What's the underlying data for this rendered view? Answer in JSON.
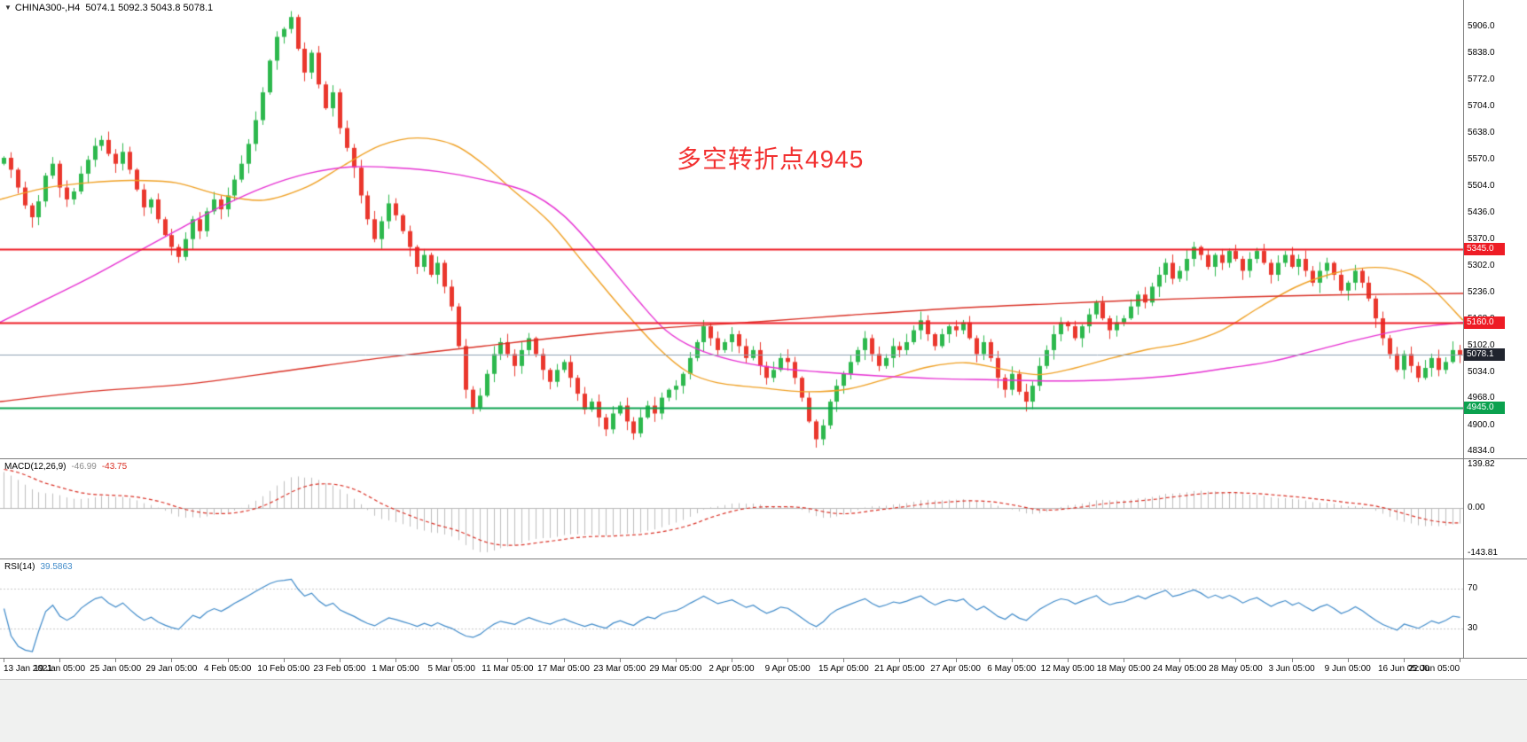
{
  "colors": {
    "bull": "#2db84d",
    "bear": "#ea372d",
    "ma_fast": "#efa024",
    "ma_mid": "#e632d2",
    "ma_slow": "#d93025",
    "hline_red": "#ee1c25",
    "hline_green": "#0aa14e",
    "price_line": "#8fa0b3",
    "hist": "#bdbdbd",
    "signal": "#d93025",
    "rsi": "#3f8ac9",
    "annotation": "#f23030",
    "badge_dark": "#20242e",
    "macd_value": "#8a8a8a",
    "rsi_value": "#3f8ac9"
  },
  "symbol_info": {
    "marker": "▼",
    "symbol": "CHINA300-,H4",
    "ohlc": "5074.1 5092.3 5043.8 5078.1"
  },
  "annotation": {
    "text": "多空转折点4945"
  },
  "price_scale": {
    "ticks": [
      5906,
      5838,
      5772,
      5704,
      5638,
      5570,
      5504,
      5436,
      5370,
      5302,
      5236,
      5168,
      5102,
      5034,
      4968,
      4900,
      4834
    ],
    "badges": [
      {
        "label": "5345.0",
        "price": 5345,
        "bg": "#ee1c25",
        "name": "hline-badge-5345"
      },
      {
        "label": "5160.0",
        "price": 5160,
        "bg": "#ee1c25",
        "name": "hline-badge-5160"
      },
      {
        "label": "5078.1",
        "price": 5078.1,
        "bg": "#20242e",
        "name": "current-price-badge"
      },
      {
        "label": "4945.0",
        "price": 4945,
        "bg": "#0aa14e",
        "name": "hline-badge-4945"
      }
    ]
  },
  "macd_header": {
    "label": "MACD(12,26,9)",
    "main": "-46.99",
    "signal": "-43.75"
  },
  "macd_scale": [
    "139.82",
    "0.00",
    "-143.81"
  ],
  "rsi_header": {
    "label": "RSI(14)",
    "value": "39.5863"
  },
  "rsi_scale": [
    "70",
    "30"
  ],
  "chart_data": {
    "type": "candlestick",
    "title": "CHINA300- H4",
    "price_range": [
      4817,
      5973
    ],
    "closes": [
      5575,
      5545,
      5500,
      5455,
      5425,
      5465,
      5530,
      5560,
      5500,
      5470,
      5490,
      5535,
      5570,
      5605,
      5620,
      5585,
      5560,
      5590,
      5545,
      5495,
      5450,
      5470,
      5420,
      5380,
      5350,
      5325,
      5370,
      5420,
      5390,
      5440,
      5470,
      5445,
      5480,
      5520,
      5560,
      5610,
      5670,
      5740,
      5820,
      5880,
      5900,
      5930,
      5850,
      5790,
      5840,
      5760,
      5700,
      5740,
      5650,
      5600,
      5550,
      5480,
      5420,
      5370,
      5415,
      5460,
      5430,
      5390,
      5350,
      5300,
      5330,
      5280,
      5310,
      5250,
      5200,
      5100,
      4990,
      4945,
      4975,
      5030,
      5080,
      5110,
      5080,
      5050,
      5090,
      5120,
      5080,
      5040,
      5010,
      5040,
      5060,
      5020,
      4980,
      4940,
      4960,
      4920,
      4890,
      4930,
      4950,
      4910,
      4880,
      4920,
      4950,
      4930,
      4970,
      4990,
      5000,
      5030,
      5070,
      5110,
      5150,
      5120,
      5090,
      5110,
      5130,
      5100,
      5070,
      5090,
      5050,
      5020,
      5040,
      5070,
      5060,
      5020,
      4970,
      4910,
      4865,
      4900,
      4960,
      5000,
      5030,
      5060,
      5090,
      5120,
      5080,
      5050,
      5070,
      5100,
      5090,
      5110,
      5140,
      5165,
      5130,
      5100,
      5130,
      5150,
      5140,
      5160,
      5120,
      5080,
      5110,
      5070,
      5020,
      4990,
      5030,
      4985,
      4960,
      5000,
      5050,
      5090,
      5130,
      5160,
      5150,
      5120,
      5150,
      5180,
      5210,
      5170,
      5140,
      5160,
      5170,
      5200,
      5230,
      5210,
      5250,
      5280,
      5310,
      5270,
      5290,
      5320,
      5350,
      5330,
      5300,
      5330,
      5310,
      5340,
      5320,
      5290,
      5320,
      5340,
      5310,
      5280,
      5310,
      5330,
      5300,
      5320,
      5290,
      5260,
      5290,
      5310,
      5280,
      5240,
      5260,
      5290,
      5260,
      5220,
      5170,
      5120,
      5080,
      5040,
      5080,
      5050,
      5020,
      5045,
      5070,
      5040,
      5060,
      5090,
      5078.1
    ],
    "moving_averages": [
      {
        "name": "ma-fast-orange",
        "color": "#efa024",
        "points": [
          [
            0.0,
            5470
          ],
          [
            0.03,
            5498
          ],
          [
            0.06,
            5512
          ],
          [
            0.09,
            5518
          ],
          [
            0.12,
            5512
          ],
          [
            0.15,
            5482
          ],
          [
            0.18,
            5468
          ],
          [
            0.21,
            5502
          ],
          [
            0.235,
            5556
          ],
          [
            0.26,
            5606
          ],
          [
            0.285,
            5625
          ],
          [
            0.31,
            5608
          ],
          [
            0.33,
            5560
          ],
          [
            0.35,
            5495
          ],
          [
            0.375,
            5415
          ],
          [
            0.4,
            5305
          ],
          [
            0.425,
            5195
          ],
          [
            0.45,
            5095
          ],
          [
            0.47,
            5035
          ],
          [
            0.49,
            5008
          ],
          [
            0.52,
            4995
          ],
          [
            0.55,
            4985
          ],
          [
            0.58,
            4992
          ],
          [
            0.61,
            5022
          ],
          [
            0.635,
            5048
          ],
          [
            0.66,
            5058
          ],
          [
            0.685,
            5042
          ],
          [
            0.71,
            5028
          ],
          [
            0.735,
            5045
          ],
          [
            0.76,
            5070
          ],
          [
            0.785,
            5092
          ],
          [
            0.81,
            5108
          ],
          [
            0.835,
            5140
          ],
          [
            0.86,
            5196
          ],
          [
            0.885,
            5248
          ],
          [
            0.91,
            5282
          ],
          [
            0.935,
            5298
          ],
          [
            0.955,
            5292
          ],
          [
            0.975,
            5258
          ],
          [
            1.0,
            5165
          ]
        ]
      },
      {
        "name": "ma-mid-magenta",
        "color": "#e632d2",
        "points": [
          [
            0.0,
            5160
          ],
          [
            0.03,
            5215
          ],
          [
            0.06,
            5270
          ],
          [
            0.09,
            5330
          ],
          [
            0.12,
            5390
          ],
          [
            0.15,
            5450
          ],
          [
            0.18,
            5500
          ],
          [
            0.21,
            5535
          ],
          [
            0.24,
            5552
          ],
          [
            0.27,
            5550
          ],
          [
            0.3,
            5540
          ],
          [
            0.33,
            5520
          ],
          [
            0.36,
            5490
          ],
          [
            0.385,
            5430
          ],
          [
            0.41,
            5330
          ],
          [
            0.435,
            5220
          ],
          [
            0.455,
            5140
          ],
          [
            0.475,
            5095
          ],
          [
            0.5,
            5065
          ],
          [
            0.53,
            5045
          ],
          [
            0.56,
            5035
          ],
          [
            0.6,
            5025
          ],
          [
            0.64,
            5018
          ],
          [
            0.68,
            5015
          ],
          [
            0.72,
            5012
          ],
          [
            0.76,
            5015
          ],
          [
            0.8,
            5025
          ],
          [
            0.84,
            5045
          ],
          [
            0.87,
            5062
          ],
          [
            0.9,
            5090
          ],
          [
            0.93,
            5118
          ],
          [
            0.96,
            5142
          ],
          [
            0.98,
            5152
          ],
          [
            1.0,
            5160
          ]
        ]
      },
      {
        "name": "ma-slow-red",
        "color": "#d93025",
        "points": [
          [
            0.0,
            4960
          ],
          [
            0.06,
            4985
          ],
          [
            0.13,
            5005
          ],
          [
            0.2,
            5040
          ],
          [
            0.26,
            5070
          ],
          [
            0.33,
            5100
          ],
          [
            0.39,
            5125
          ],
          [
            0.45,
            5145
          ],
          [
            0.52,
            5162
          ],
          [
            0.58,
            5178
          ],
          [
            0.65,
            5195
          ],
          [
            0.72,
            5207
          ],
          [
            0.78,
            5216
          ],
          [
            0.85,
            5224
          ],
          [
            0.91,
            5229
          ],
          [
            1.0,
            5233
          ]
        ]
      }
    ],
    "hlines": [
      {
        "price": 5345,
        "color": "#ee1c25",
        "width": 2
      },
      {
        "price": 5160,
        "color": "#ee1c25",
        "width": 2
      },
      {
        "price": 4945,
        "color": "#0aa14e",
        "width": 2
      },
      {
        "price": 5078.1,
        "color": "#8fa0b3",
        "width": 1
      }
    ],
    "macd": {
      "params": "12,26,9",
      "range": [
        -160,
        155
      ],
      "current_macd": -46.99,
      "current_signal": -43.75
    },
    "rsi": {
      "period": 14,
      "current": 39.5863,
      "levels": [
        70,
        30
      ]
    },
    "x_labels": [
      "13 Jan 2021",
      "19 Jan 05:00",
      "25 Jan 05:00",
      "29 Jan 05:00",
      "4 Feb 05:00",
      "10 Feb 05:00",
      "23 Feb 05:00",
      "1 Mar 05:00",
      "5 Mar 05:00",
      "11 Mar 05:00",
      "17 Mar 05:00",
      "23 Mar 05:00",
      "29 Mar 05:00",
      "2 Apr 05:00",
      "9 Apr 05:00",
      "15 Apr 05:00",
      "21 Apr 05:00",
      "27 Apr 05:00",
      "6 May 05:00",
      "12 May 05:00",
      "18 May 05:00",
      "24 May 05:00",
      "28 May 05:00",
      "3 Jun 05:00",
      "9 Jun 05:00",
      "16 Jun 05:00",
      "22 Jun 05:00"
    ]
  }
}
